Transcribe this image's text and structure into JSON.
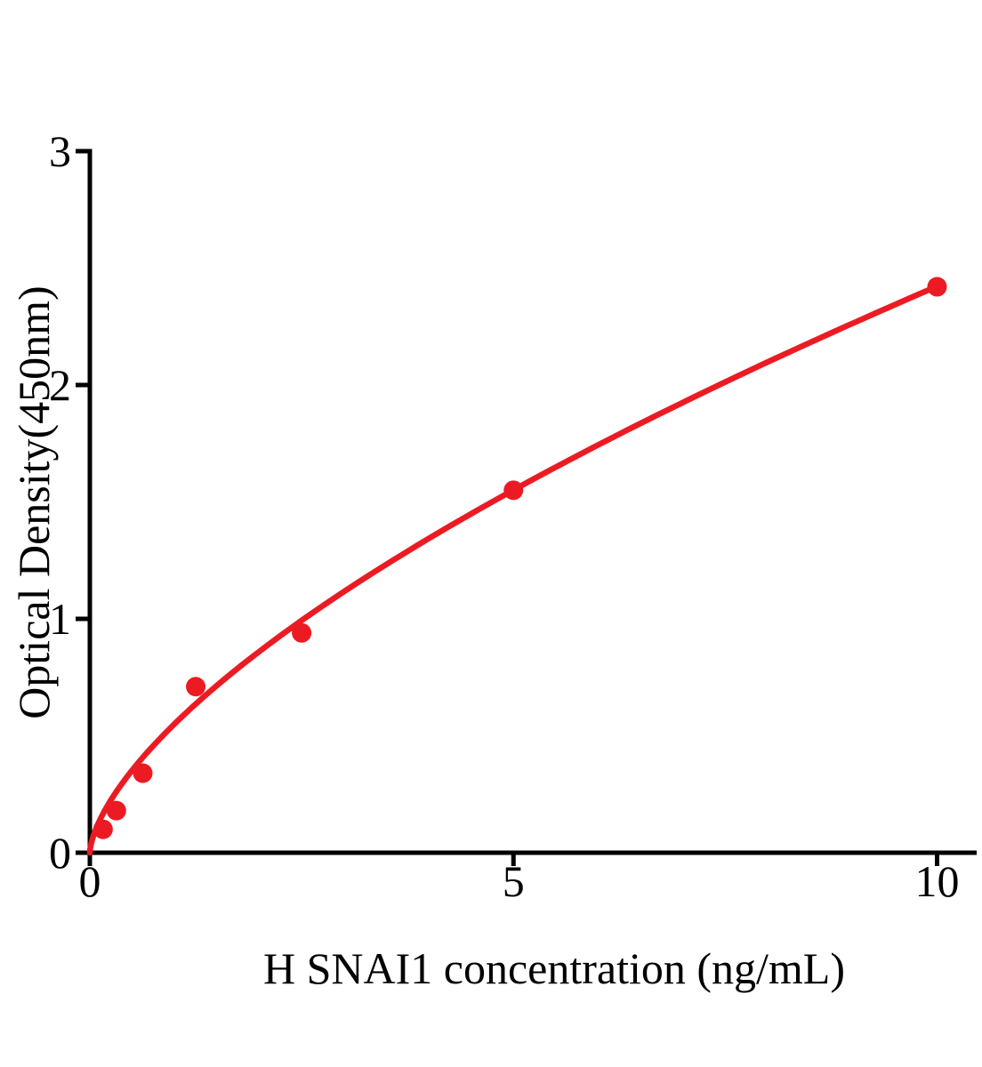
{
  "figure": {
    "background_color": "#ffffff",
    "axis_color": "#000000",
    "accent_red": "#ec1b23"
  },
  "chart_data": {
    "type": "scatter",
    "title": "",
    "xlabel": "H SNAI1 concentration (ng/mL)",
    "ylabel": "Optical Density(450nm)",
    "series": [
      {
        "color": "#ec1b23",
        "marker": "filled-circle",
        "x": [
          0.156,
          0.313,
          0.625,
          1.25,
          2.5,
          5,
          10
        ],
        "y": [
          0.1,
          0.18,
          0.34,
          0.71,
          0.94,
          1.55,
          2.42
        ]
      }
    ],
    "fit_curve": {
      "model": "power y=a*x^b",
      "a": 0.551,
      "b": 0.643,
      "x_range": [
        0,
        10
      ]
    },
    "xlim": [
      0,
      10.47
    ],
    "ylim": [
      0,
      3
    ],
    "x_ticks": [
      0,
      5,
      10
    ],
    "y_ticks": [
      0,
      1,
      2,
      3
    ],
    "grid": false,
    "legend": "none"
  }
}
